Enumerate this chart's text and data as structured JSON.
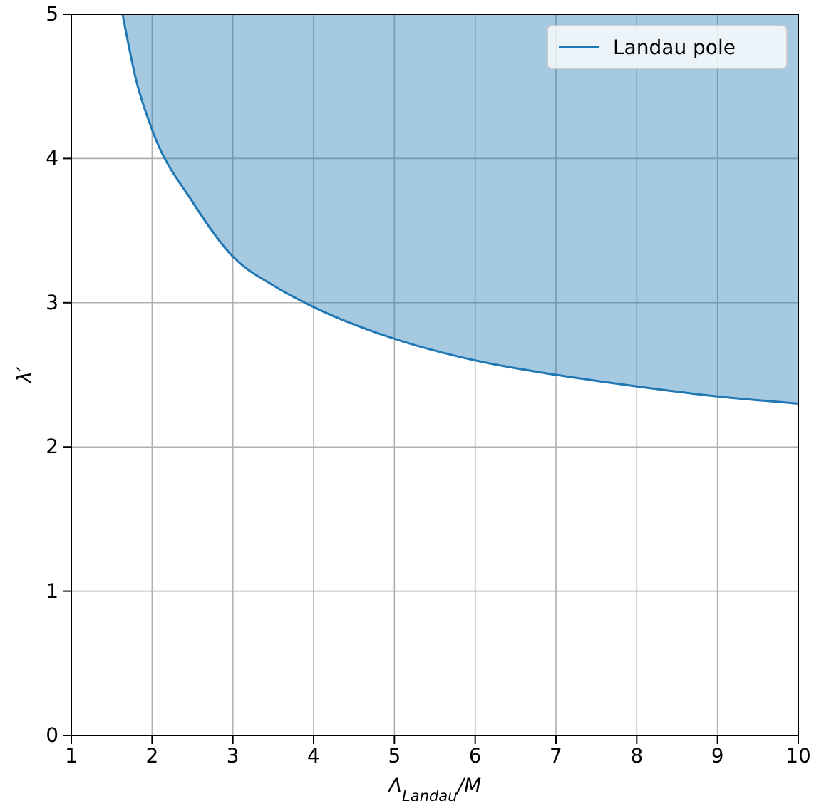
{
  "chart_data": {
    "type": "line",
    "xlabel": "Λ$_{Landau}$/M",
    "ylabel": "λ′",
    "xlim": [
      1,
      10
    ],
    "ylim": [
      0,
      5
    ],
    "xticks": [
      1,
      2,
      3,
      4,
      5,
      6,
      7,
      8,
      9,
      10
    ],
    "yticks": [
      0,
      1,
      2,
      3,
      4,
      5
    ],
    "grid": true,
    "legend": "top right",
    "series": [
      {
        "name": "Landau pole",
        "color": "#1f77b4",
        "x": [
          1.635,
          1.8,
          2,
          2.5,
          3,
          3.5,
          4,
          5,
          6,
          7,
          8,
          9,
          10
        ],
        "values": [
          5,
          4.55,
          4.2,
          3.7,
          3.32,
          3.12,
          2.97,
          2.75,
          2.6,
          2.5,
          2.42,
          2.35,
          2.3
        ],
        "lower": [
          5,
          4.55,
          4.2,
          3.7,
          3.32,
          3.12,
          2.97,
          2.75,
          2.6,
          2.5,
          2.42,
          2.35,
          2.3
        ],
        "upper": [
          5,
          5,
          5,
          5,
          5,
          5,
          5,
          5,
          5,
          5,
          5,
          5,
          5
        ]
      }
    ]
  }
}
